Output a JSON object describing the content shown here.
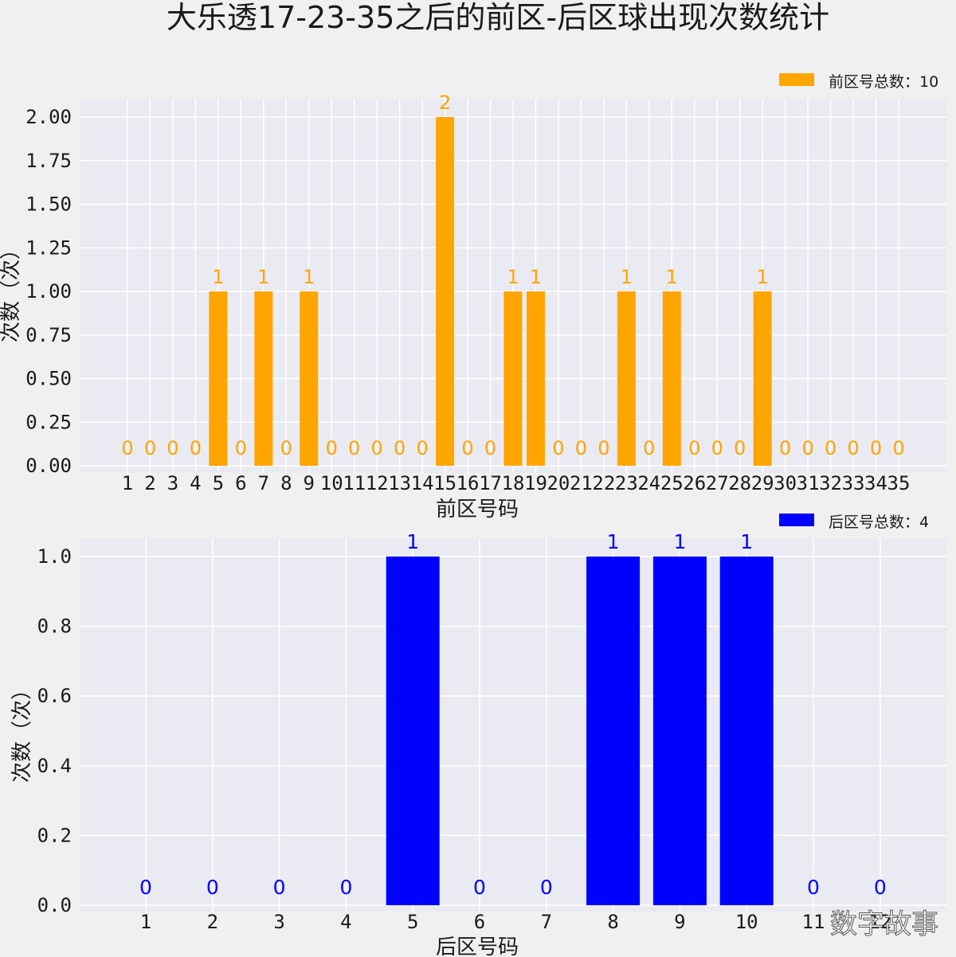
{
  "title": "大乐透17-23-35之后的前区-后区球出现次数统计",
  "watermark": "数字故事",
  "chart_data": [
    {
      "type": "bar",
      "categories": [
        "1",
        "2",
        "3",
        "4",
        "5",
        "6",
        "7",
        "8",
        "9",
        "10",
        "11",
        "12",
        "13",
        "14",
        "15",
        "16",
        "17",
        "18",
        "19",
        "20",
        "21",
        "22",
        "23",
        "24",
        "25",
        "26",
        "27",
        "28",
        "29",
        "30",
        "31",
        "32",
        "33",
        "34",
        "35"
      ],
      "values": [
        0,
        0,
        0,
        0,
        1,
        0,
        1,
        0,
        1,
        0,
        0,
        0,
        0,
        0,
        2,
        0,
        0,
        1,
        1,
        0,
        0,
        0,
        1,
        0,
        1,
        0,
        0,
        0,
        1,
        0,
        0,
        0,
        0,
        0,
        0
      ],
      "xlabel": "前区号码",
      "ylabel": "次数（次）",
      "ylim": [
        0,
        2.1
      ],
      "yticks": [
        "0.00",
        "0.25",
        "0.50",
        "0.75",
        "1.00",
        "1.25",
        "1.50",
        "1.75",
        "2.00"
      ],
      "color": "#ffa500",
      "legend": "前区号总数：10",
      "legend_position": "top-right",
      "grid": true
    },
    {
      "type": "bar",
      "categories": [
        "1",
        "2",
        "3",
        "4",
        "5",
        "6",
        "7",
        "8",
        "9",
        "10",
        "11",
        "12"
      ],
      "values": [
        0,
        0,
        0,
        0,
        1,
        0,
        0,
        1,
        1,
        1,
        0,
        0
      ],
      "xlabel": "后区号码",
      "ylabel": "次数（次）",
      "ylim": [
        0,
        1.05
      ],
      "yticks": [
        "0.0",
        "0.2",
        "0.4",
        "0.6",
        "0.8",
        "1.0"
      ],
      "color": "#0000ff",
      "legend": "后区号总数：4",
      "legend_position": "top-right",
      "grid": true
    }
  ]
}
